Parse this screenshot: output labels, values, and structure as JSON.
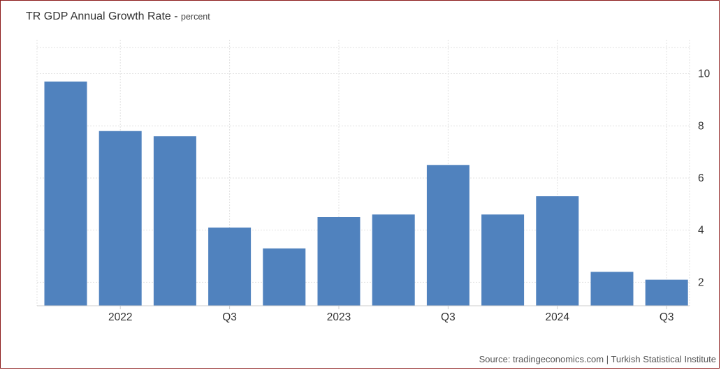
{
  "chart_data": {
    "type": "bar",
    "title": "TR GDP Annual Growth Rate",
    "unit": "percent",
    "categories": [
      "2021 Q4",
      "2022 Q1",
      "2022 Q2",
      "2022 Q3",
      "2022 Q4",
      "2023 Q1",
      "2023 Q2",
      "2023 Q3",
      "2023 Q4",
      "2024 Q1",
      "2024 Q2",
      "2024 Q3"
    ],
    "values": [
      9.7,
      7.8,
      7.6,
      4.1,
      3.3,
      4.5,
      4.6,
      6.5,
      4.6,
      5.3,
      2.4,
      2.1
    ],
    "x_tick_labels": [
      {
        "category": "2022 Q1",
        "label": "2022"
      },
      {
        "category": "2022 Q3",
        "label": "Q3"
      },
      {
        "category": "2023 Q1",
        "label": "2023"
      },
      {
        "category": "2023 Q3",
        "label": "Q3"
      },
      {
        "category": "2024 Q1",
        "label": "2024"
      },
      {
        "category": "2024 Q3",
        "label": "Q3"
      }
    ],
    "y_ticks": [
      2,
      4,
      6,
      8,
      10
    ],
    "ylim": [
      1.1,
      11.3
    ],
    "y_axis_side": "right",
    "grid": true,
    "bar_color": "#5082be",
    "source": "Source: tradingeconomics.com | Turkish Statistical Institute"
  }
}
